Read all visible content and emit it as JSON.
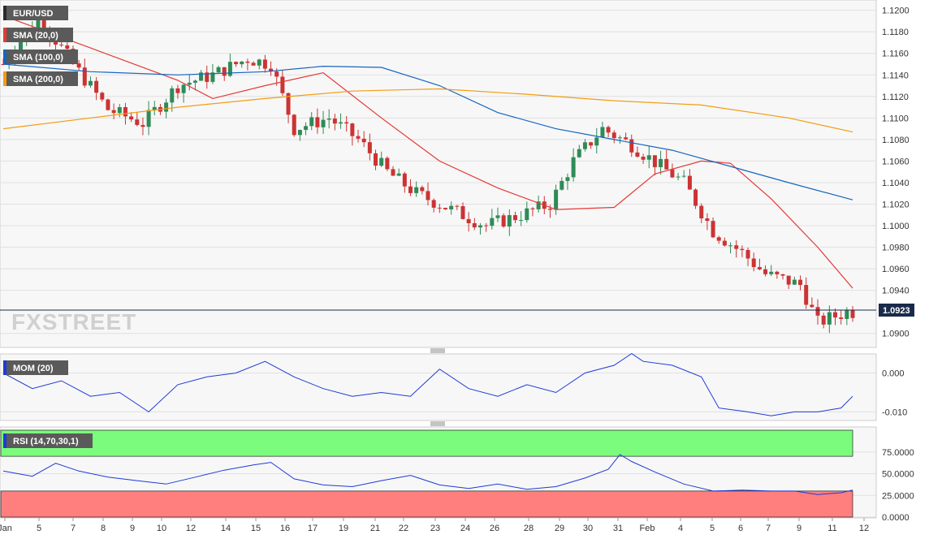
{
  "chart_data": [
    {
      "type": "candlestick",
      "title": "EUR/USD",
      "x_labels": [
        "Jan",
        "5",
        "7",
        "8",
        "9",
        "10",
        "12",
        "14",
        "15",
        "16",
        "17",
        "19",
        "21",
        "22",
        "23",
        "24",
        "26",
        "28",
        "29",
        "30",
        "31",
        "Feb",
        "4",
        "5",
        "6",
        "7",
        "9",
        "11",
        "12"
      ],
      "ylim": [
        1.089,
        1.1205
      ],
      "yticks": [
        "1.1200",
        "1.1180",
        "1.1160",
        "1.1140",
        "1.1120",
        "1.1100",
        "1.1080",
        "1.1060",
        "1.1040",
        "1.1020",
        "1.1000",
        "1.0980",
        "1.0960",
        "1.0940",
        "1.0900"
      ],
      "last_price": "1.0923",
      "grid": true,
      "close_anchors": [
        [
          0,
          1.115
        ],
        [
          6,
          1.1195
        ],
        [
          12,
          1.115
        ],
        [
          18,
          1.1108
        ],
        [
          24,
          1.1095
        ],
        [
          30,
          1.113
        ],
        [
          36,
          1.114
        ],
        [
          42,
          1.1155
        ],
        [
          46,
          1.115
        ],
        [
          50,
          1.109
        ],
        [
          56,
          1.11
        ],
        [
          61,
          1.108
        ],
        [
          66,
          1.105
        ],
        [
          71,
          1.103
        ],
        [
          77,
          1.1015
        ],
        [
          83,
          1.1
        ],
        [
          89,
          1.101
        ],
        [
          94,
          1.102
        ],
        [
          98,
          1.106
        ],
        [
          103,
          1.109
        ],
        [
          108,
          1.1075
        ],
        [
          113,
          1.1055
        ],
        [
          117,
          1.104
        ],
        [
          122,
          1.0995
        ],
        [
          127,
          1.0975
        ],
        [
          131,
          1.0955
        ],
        [
          137,
          1.0945
        ],
        [
          140,
          1.091
        ],
        [
          145,
          1.092
        ]
      ],
      "series": [
        {
          "name": "SMA (20,0)",
          "color": "#e53935",
          "values": [
            [
              0,
              1.1195
            ],
            [
              15,
              1.1165
            ],
            [
              30,
              1.1135
            ],
            [
              36,
              1.1118
            ],
            [
              45,
              1.113
            ],
            [
              55,
              1.1142
            ],
            [
              65,
              1.11
            ],
            [
              75,
              1.106
            ],
            [
              85,
              1.1035
            ],
            [
              95,
              1.1015
            ],
            [
              105,
              1.1017
            ],
            [
              112,
              1.1048
            ],
            [
              120,
              1.106
            ],
            [
              125,
              1.1058
            ],
            [
              132,
              1.1025
            ],
            [
              140,
              1.098
            ],
            [
              146,
              1.0942
            ]
          ]
        },
        {
          "name": "SMA (100,0)",
          "color": "#1565c0",
          "values": [
            [
              0,
              1.115
            ],
            [
              15,
              1.1143
            ],
            [
              30,
              1.114
            ],
            [
              45,
              1.1143
            ],
            [
              55,
              1.1148
            ],
            [
              65,
              1.1147
            ],
            [
              75,
              1.113
            ],
            [
              85,
              1.1105
            ],
            [
              95,
              1.109
            ],
            [
              105,
              1.108
            ],
            [
              115,
              1.107
            ],
            [
              125,
              1.1055
            ],
            [
              135,
              1.104
            ],
            [
              146,
              1.1024
            ]
          ]
        },
        {
          "name": "SMA (200,0)",
          "color": "#f39c12",
          "values": [
            [
              0,
              1.109
            ],
            [
              15,
              1.11
            ],
            [
              30,
              1.111
            ],
            [
              45,
              1.1118
            ],
            [
              60,
              1.1125
            ],
            [
              75,
              1.1127
            ],
            [
              90,
              1.1122
            ],
            [
              105,
              1.1116
            ],
            [
              120,
              1.1112
            ],
            [
              135,
              1.11
            ],
            [
              146,
              1.1087
            ]
          ]
        }
      ]
    },
    {
      "type": "line",
      "title": "MOM (20)",
      "ylim": [
        -0.0118,
        0.0045
      ],
      "yticks": [
        "0.000",
        "-0.010"
      ],
      "series": [
        {
          "name": "MOM (20)",
          "color": "#1e3ad8",
          "values": [
            [
              0,
              0.0
            ],
            [
              5,
              -0.004
            ],
            [
              10,
              -0.002
            ],
            [
              15,
              -0.006
            ],
            [
              20,
              -0.005
            ],
            [
              25,
              -0.01
            ],
            [
              30,
              -0.003
            ],
            [
              35,
              -0.001
            ],
            [
              40,
              0.0
            ],
            [
              45,
              0.003
            ],
            [
              50,
              -0.001
            ],
            [
              55,
              -0.004
            ],
            [
              60,
              -0.006
            ],
            [
              65,
              -0.005
            ],
            [
              70,
              -0.006
            ],
            [
              75,
              0.001
            ],
            [
              80,
              -0.004
            ],
            [
              85,
              -0.006
            ],
            [
              90,
              -0.003
            ],
            [
              95,
              -0.005
            ],
            [
              100,
              0.0
            ],
            [
              105,
              0.002
            ],
            [
              108,
              0.005
            ],
            [
              110,
              0.003
            ],
            [
              115,
              0.002
            ],
            [
              120,
              -0.001
            ],
            [
              123,
              -0.009
            ],
            [
              128,
              -0.01
            ],
            [
              132,
              -0.011
            ],
            [
              136,
              -0.01
            ],
            [
              140,
              -0.01
            ],
            [
              144,
              -0.009
            ],
            [
              146,
              -0.006
            ]
          ]
        }
      ]
    },
    {
      "type": "line",
      "title": "RSI (14,70,30,1)",
      "ylim": [
        0,
        100
      ],
      "yticks": [
        "75.0000",
        "50.0000",
        "25.0000",
        "0.0000"
      ],
      "levels": [
        70,
        30
      ],
      "series": [
        {
          "name": "RSI",
          "color": "#1e3ad8",
          "values": [
            [
              0,
              53
            ],
            [
              5,
              47
            ],
            [
              9,
              62
            ],
            [
              13,
              53
            ],
            [
              18,
              46
            ],
            [
              23,
              42
            ],
            [
              28,
              38
            ],
            [
              33,
              46
            ],
            [
              38,
              54
            ],
            [
              43,
              60
            ],
            [
              46,
              63
            ],
            [
              50,
              44
            ],
            [
              55,
              37
            ],
            [
              60,
              35
            ],
            [
              65,
              42
            ],
            [
              70,
              48
            ],
            [
              75,
              37
            ],
            [
              80,
              33
            ],
            [
              85,
              38
            ],
            [
              90,
              32
            ],
            [
              95,
              35
            ],
            [
              100,
              45
            ],
            [
              104,
              55
            ],
            [
              106,
              72
            ],
            [
              108,
              64
            ],
            [
              112,
              52
            ],
            [
              117,
              38
            ],
            [
              122,
              30
            ],
            [
              127,
              31
            ],
            [
              132,
              30
            ],
            [
              136,
              30
            ],
            [
              140,
              26
            ],
            [
              144,
              28
            ],
            [
              146,
              31
            ]
          ]
        }
      ]
    }
  ],
  "legend": {
    "pair": "EUR/USD",
    "sma20": "SMA (20,0)",
    "sma100": "SMA (100,0)",
    "sma200": "SMA (200,0)",
    "mom": "MOM (20)",
    "rsi": "RSI (14,70,30,1)"
  },
  "brand": "FXSTREET",
  "colors": {
    "up": "#2e8b57",
    "down": "#cc3333",
    "rsi_overbought": "#7cfc7c",
    "rsi_oversold": "#ff7f7f"
  }
}
